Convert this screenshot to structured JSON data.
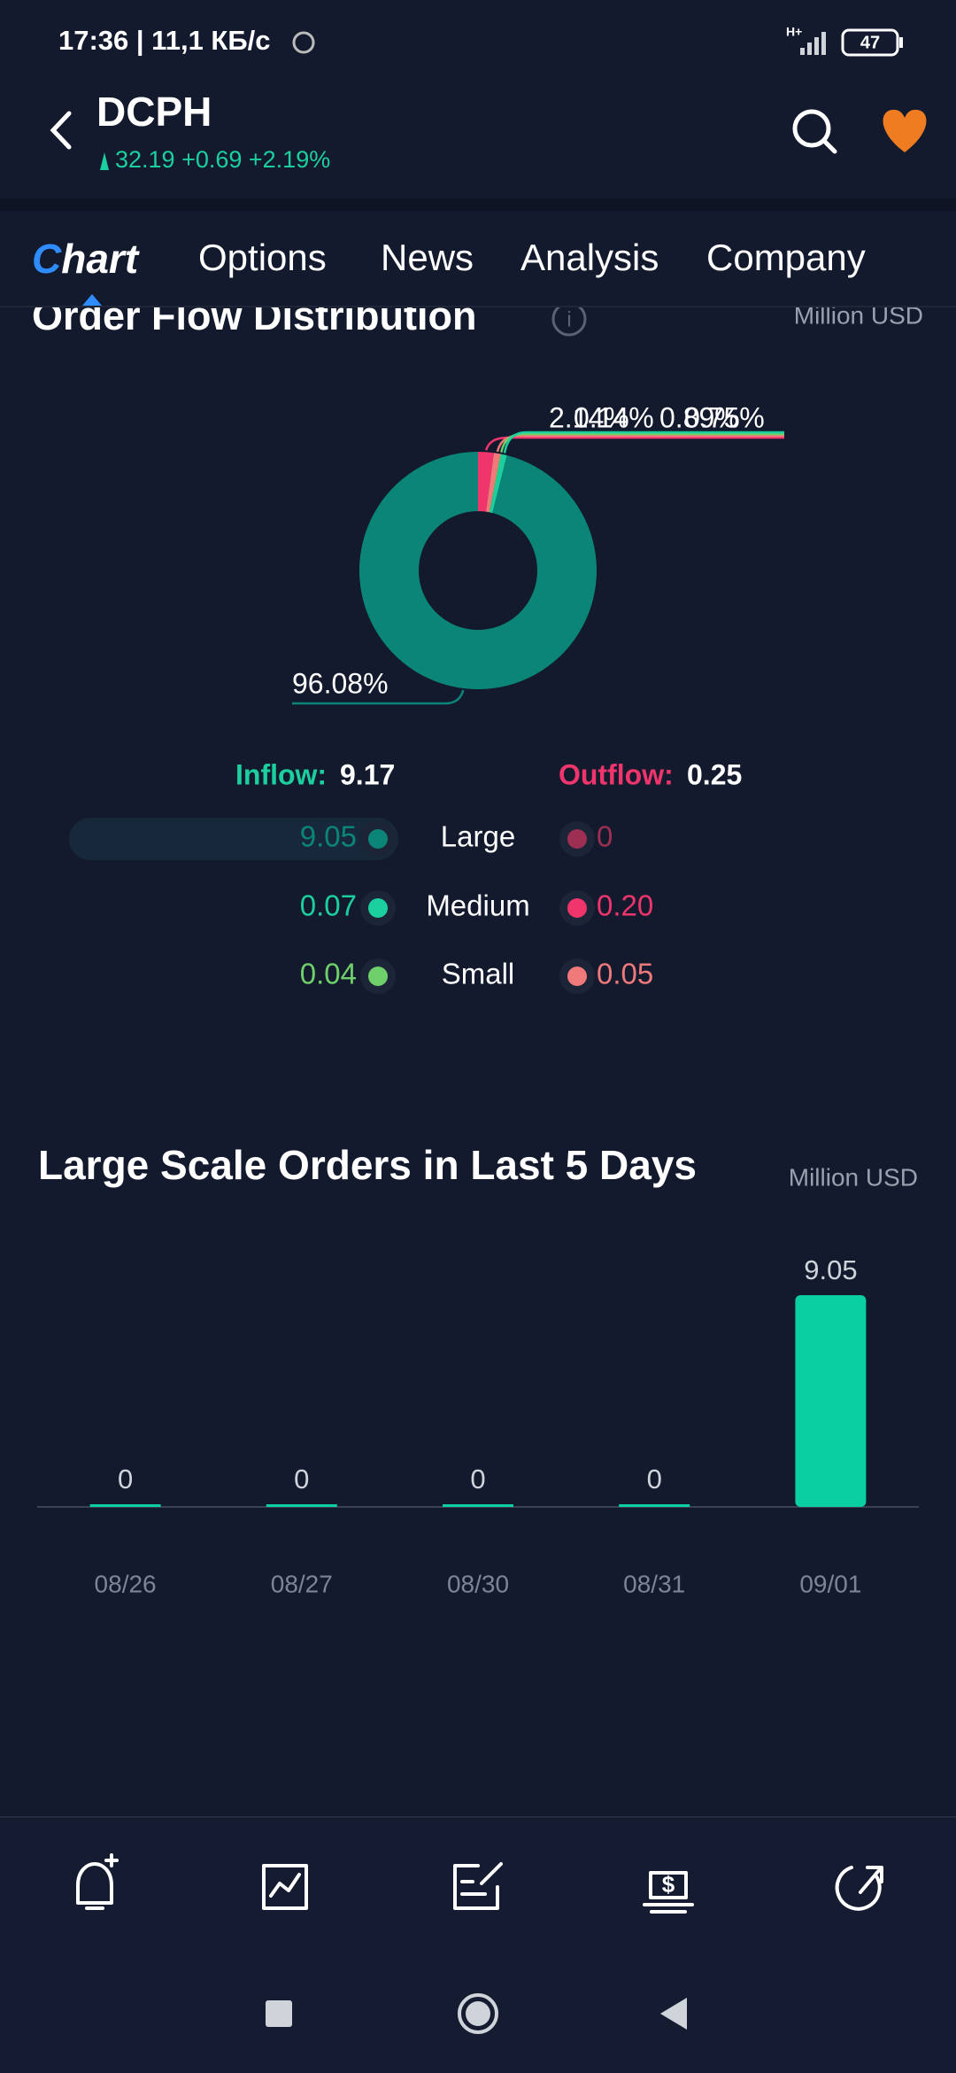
{
  "status_bar": {
    "time_speed": "17:36 | 11,1 КБ/с",
    "network": "H+",
    "battery": "47"
  },
  "header": {
    "symbol": "DCPH",
    "quote": "32.19 +0.69 +2.19%"
  },
  "tabs": [
    "Chart",
    "Options",
    "News",
    "Analysis",
    "Company"
  ],
  "order_flow": {
    "title": "Order Flow Distribution",
    "unit": "Million USD",
    "inflow_label": "Inflow:",
    "inflow_total": "9.17",
    "outflow_label": "Outflow:",
    "outflow_total": "0.25",
    "rows": [
      {
        "inflow": "9.05",
        "label": "Large",
        "outflow": "0"
      },
      {
        "inflow": "0.07",
        "label": "Medium",
        "outflow": "0.20"
      },
      {
        "inflow": "0.04",
        "label": "Small",
        "outflow": "0.05"
      }
    ]
  },
  "large_orders": {
    "title": "Large Scale Orders in Last 5 Days",
    "unit": "Million USD"
  },
  "chart_data": [
    {
      "type": "pie",
      "donut": true,
      "values": [
        2.14,
        0.89,
        0.14,
        0.75,
        96.08
      ],
      "value_labels": [
        "2.14%",
        "0.89%",
        "0.14%",
        "0.75%",
        "96.08%"
      ],
      "colors": [
        "#f0346c",
        "#f07a7a",
        "#6fcf6a",
        "#1ccf9e",
        "#0b8577"
      ]
    },
    {
      "type": "bar",
      "categories": [
        "08/26",
        "08/27",
        "08/30",
        "08/31",
        "09/01"
      ],
      "values": [
        0,
        0,
        0,
        0,
        9.05
      ],
      "color": "#0acfa3"
    }
  ]
}
